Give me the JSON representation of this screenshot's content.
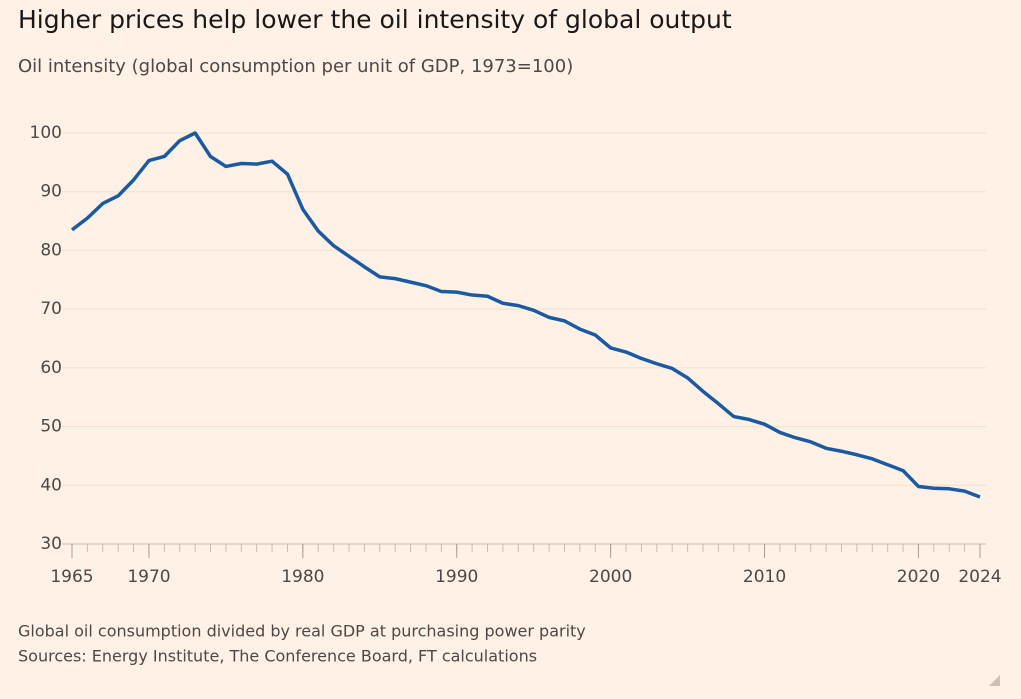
{
  "chart_data": {
    "type": "line",
    "title": "Higher prices help lower the oil intensity of global output",
    "subtitle": "Oil intensity (global consumption per unit of GDP, 1973=100)",
    "notes": [
      "Global oil consumption divided by real GDP at purchasing power parity",
      "Sources: Energy Institute, The Conference Board, FT calculations"
    ],
    "x": [
      1965,
      1966,
      1967,
      1968,
      1969,
      1970,
      1971,
      1972,
      1973,
      1974,
      1975,
      1976,
      1977,
      1978,
      1979,
      1980,
      1981,
      1982,
      1983,
      1984,
      1985,
      1986,
      1987,
      1988,
      1989,
      1990,
      1991,
      1992,
      1993,
      1994,
      1995,
      1996,
      1997,
      1998,
      1999,
      2000,
      2001,
      2002,
      2003,
      2004,
      2005,
      2006,
      2007,
      2008,
      2009,
      2010,
      2011,
      2012,
      2013,
      2014,
      2015,
      2016,
      2017,
      2018,
      2019,
      2020,
      2021,
      2022,
      2023,
      2024
    ],
    "series": [
      {
        "name": "Oil intensity",
        "color": "#1a5aa0",
        "values": [
          83.5,
          85.5,
          88,
          89.3,
          92,
          95.3,
          96,
          98.7,
          100,
          96,
          94.3,
          94.8,
          94.7,
          95.2,
          93,
          87,
          83.3,
          80.8,
          79,
          77.2,
          75.5,
          75.2,
          74.6,
          74,
          73,
          72.9,
          72.4,
          72.2,
          71,
          70.6,
          69.8,
          68.6,
          68,
          66.6,
          65.6,
          63.4,
          62.7,
          61.6,
          60.7,
          59.9,
          58.3,
          56,
          53.9,
          51.7,
          51.2,
          50.4,
          49,
          48.1,
          47.4,
          46.3,
          45.8,
          45.2,
          44.5,
          43.5,
          42.5,
          39.8,
          39.5,
          39.4,
          39,
          38
        ]
      }
    ],
    "xlim": [
      1965,
      2024
    ],
    "xticks": [
      1965,
      1970,
      1980,
      1990,
      2000,
      2010,
      2020,
      2024
    ],
    "ylim": [
      30,
      100
    ],
    "yticks": [
      30,
      40,
      50,
      60,
      70,
      80,
      90,
      100
    ],
    "grid": true
  }
}
